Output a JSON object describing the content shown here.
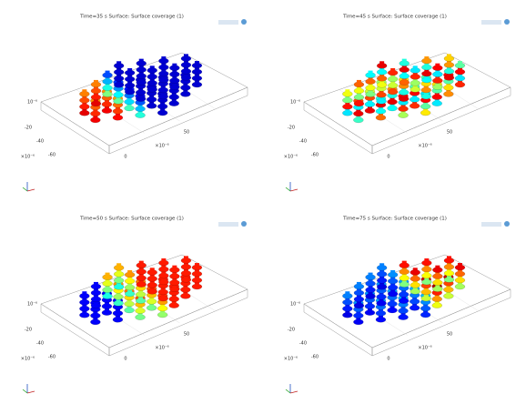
{
  "panels": [
    {
      "title": "Time=35 s  Surface: Surface coverage (1)",
      "z_exp": "10⁻⁶",
      "y_ticks": [
        "-20",
        "-40",
        "-60"
      ],
      "y_exp": "×10⁻⁶",
      "x_ticks": [
        "0",
        "50"
      ],
      "x_exp": "×10⁻⁶"
    },
    {
      "title": "Time=45 s  Surface: Surface coverage (1)",
      "z_exp": "10⁻⁶",
      "y_ticks": [
        "-20",
        "-40",
        "-60"
      ],
      "y_exp": "×10⁻⁶",
      "x_ticks": [
        "0",
        "50"
      ],
      "x_exp": "×10⁻⁶"
    },
    {
      "title": "Time=50 s  Surface: Surface coverage (1)",
      "z_exp": "10⁻⁶",
      "y_ticks": [
        "-20",
        "-40",
        "-60"
      ],
      "y_exp": "×10⁻⁶",
      "x_ticks": [
        "0",
        "50"
      ],
      "x_exp": "×10⁻⁶"
    },
    {
      "title": "Time=75 s  Surface: Surface coverage (1)",
      "z_exp": "10⁻⁶",
      "y_ticks": [
        "-20",
        "-40",
        "-60"
      ],
      "y_exp": "×10⁻⁶",
      "x_ticks": [
        "0",
        "50"
      ],
      "x_exp": "×10⁻⁶"
    }
  ]
}
